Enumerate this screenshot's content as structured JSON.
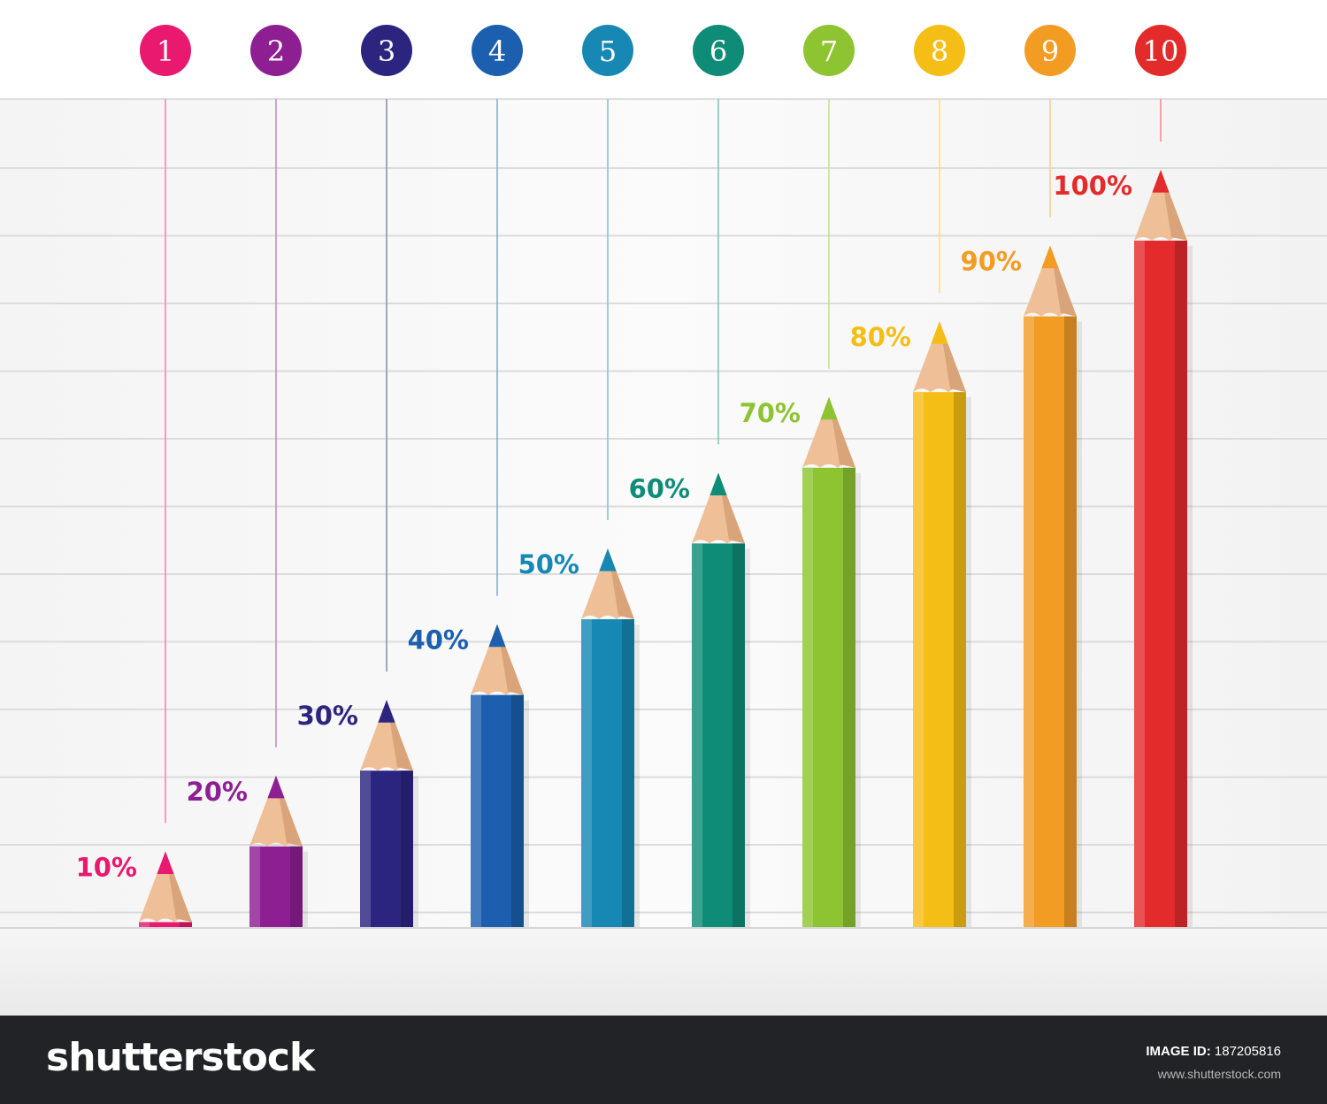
{
  "chart_data": {
    "type": "bar",
    "categories": [
      "1",
      "2",
      "3",
      "4",
      "5",
      "6",
      "7",
      "8",
      "9",
      "10"
    ],
    "values": [
      10,
      20,
      30,
      40,
      50,
      60,
      70,
      80,
      90,
      100
    ],
    "value_labels": [
      "10%",
      "20%",
      "30%",
      "40%",
      "50%",
      "60%",
      "70%",
      "80%",
      "90%",
      "100%"
    ],
    "colors": [
      "#e8196e",
      "#8e1f93",
      "#2c2580",
      "#1b5fae",
      "#1688b3",
      "#0f8c78",
      "#8ec431",
      "#f5be16",
      "#f39c23",
      "#e42b2c"
    ],
    "ylim": [
      0,
      100
    ],
    "grid": true,
    "legend": "none",
    "title": "",
    "xlabel": "",
    "ylabel": ""
  },
  "footer": {
    "brand": "shutterstock",
    "image_id_label": "IMAGE ID:",
    "image_id": "187205816",
    "site_url": "www.shutterstock.com"
  }
}
